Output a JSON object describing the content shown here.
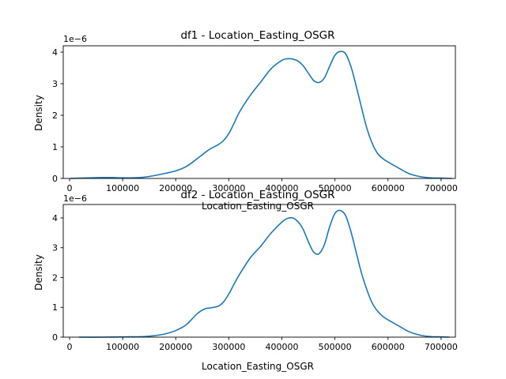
{
  "chart_data": [
    {
      "type": "line",
      "title": "df1 - Location_Easting_OSGR",
      "xlabel": "Location_Easting_OSGR",
      "ylabel": "Density",
      "y_offset_label": "1e−6",
      "xlim": [
        -12000,
        727000
      ],
      "ylim": [
        0,
        4.2
      ],
      "x_ticks": [
        0,
        100000,
        200000,
        300000,
        400000,
        500000,
        600000,
        700000
      ],
      "x_tick_labels": [
        "0",
        "100000",
        "200000",
        "300000",
        "400000",
        "500000",
        "600000",
        "700000"
      ],
      "y_ticks": [
        0,
        1,
        2,
        3,
        4
      ],
      "y_tick_labels": [
        "0",
        "1",
        "2",
        "3",
        "4"
      ],
      "grid": false,
      "color": "#1f77b4",
      "series": [
        {
          "x": [
            2000,
            20000,
            40000,
            60000,
            80000,
            100000,
            120000,
            140000,
            160000,
            180000,
            200000,
            220000,
            240000,
            260000,
            270000,
            280000,
            290000,
            300000,
            310000,
            320000,
            340000,
            360000,
            380000,
            400000,
            410000,
            420000,
            430000,
            440000,
            450000,
            460000,
            470000,
            480000,
            490000,
            500000,
            510000,
            520000,
            530000,
            540000,
            550000,
            560000,
            570000,
            580000,
            590000,
            600000,
            620000,
            640000,
            660000,
            680000,
            700000,
            720000
          ],
          "y": [
            0.0,
            0.01,
            0.02,
            0.03,
            0.03,
            0.02,
            0.02,
            0.04,
            0.09,
            0.16,
            0.24,
            0.38,
            0.62,
            0.88,
            0.98,
            1.07,
            1.2,
            1.42,
            1.75,
            2.1,
            2.62,
            3.05,
            3.48,
            3.74,
            3.79,
            3.78,
            3.72,
            3.57,
            3.33,
            3.1,
            3.04,
            3.18,
            3.55,
            3.9,
            4.02,
            3.95,
            3.55,
            2.93,
            2.25,
            1.6,
            1.12,
            0.8,
            0.63,
            0.52,
            0.33,
            0.15,
            0.06,
            0.02,
            0.01,
            0.0
          ]
        }
      ]
    },
    {
      "type": "line",
      "title": "df2 - Location_Easting_OSGR",
      "xlabel": "Location_Easting_OSGR",
      "ylabel": "Density",
      "y_offset_label": "1e−6",
      "xlim": [
        -12000,
        727000
      ],
      "ylim": [
        0,
        4.45
      ],
      "x_ticks": [
        0,
        100000,
        200000,
        300000,
        400000,
        500000,
        600000,
        700000
      ],
      "x_tick_labels": [
        "0",
        "100000",
        "200000",
        "300000",
        "400000",
        "500000",
        "600000",
        "700000"
      ],
      "y_ticks": [
        0,
        1,
        2,
        3,
        4
      ],
      "y_tick_labels": [
        "0",
        "1",
        "2",
        "3",
        "4"
      ],
      "grid": false,
      "color": "#1f77b4",
      "series": [
        {
          "x": [
            18000,
            60000,
            100000,
            140000,
            160000,
            180000,
            200000,
            220000,
            240000,
            255000,
            265000,
            280000,
            290000,
            300000,
            310000,
            320000,
            340000,
            360000,
            380000,
            400000,
            410000,
            420000,
            430000,
            440000,
            450000,
            460000,
            470000,
            480000,
            490000,
            500000,
            510000,
            520000,
            530000,
            540000,
            550000,
            560000,
            570000,
            580000,
            590000,
            600000,
            620000,
            640000,
            660000,
            680000,
            700000,
            715000
          ],
          "y": [
            0.0,
            0.0,
            0.01,
            0.02,
            0.05,
            0.11,
            0.22,
            0.42,
            0.78,
            0.95,
            0.98,
            1.04,
            1.18,
            1.45,
            1.78,
            2.1,
            2.65,
            3.05,
            3.5,
            3.86,
            3.98,
            4.0,
            3.88,
            3.62,
            3.2,
            2.85,
            2.8,
            3.1,
            3.7,
            4.15,
            4.25,
            4.08,
            3.55,
            2.85,
            2.15,
            1.6,
            1.15,
            0.88,
            0.7,
            0.58,
            0.38,
            0.18,
            0.07,
            0.02,
            0.01,
            0.0
          ]
        }
      ]
    }
  ]
}
